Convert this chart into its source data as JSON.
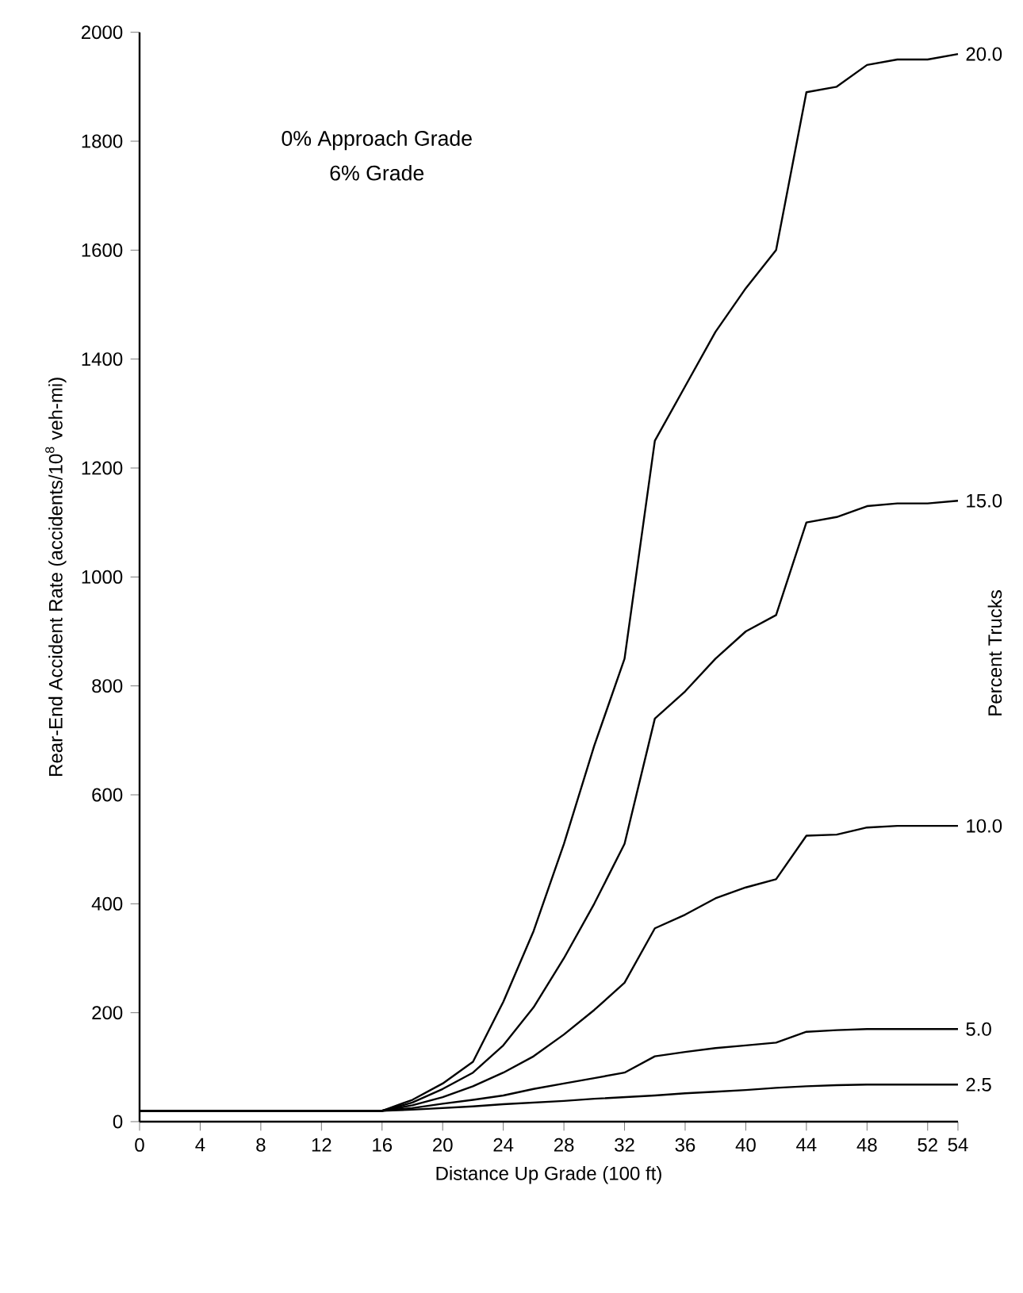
{
  "chart_data": {
    "type": "line",
    "xlabel": "Distance Up Grade (100 ft)",
    "ylabel": "Rear-End Accident Rate (accidents/10$^{8}$ veh-mi)",
    "annotations": [
      "0% Approach Grade",
      "6% Grade",
      "Percent Trucks"
    ],
    "x": [
      0,
      16,
      18,
      20,
      22,
      24,
      26,
      28,
      30,
      32,
      34,
      36,
      38,
      40,
      42,
      44,
      46,
      48,
      50,
      52,
      54
    ],
    "series": [
      {
        "name": "20.0",
        "color": "#000000",
        "values": [
          20,
          20,
          40,
          70,
          110,
          220,
          350,
          510,
          690,
          850,
          1250,
          1350,
          1450,
          1530,
          1600,
          1890,
          1900,
          1940,
          1950,
          1950,
          1960
        ]
      },
      {
        "name": "15.0",
        "color": "#000000",
        "values": [
          20,
          20,
          35,
          60,
          90,
          140,
          210,
          300,
          400,
          510,
          740,
          790,
          850,
          900,
          930,
          1100,
          1110,
          1130,
          1135,
          1135,
          1140
        ]
      },
      {
        "name": "10.0",
        "color": "#000000",
        "values": [
          20,
          20,
          30,
          45,
          65,
          90,
          120,
          160,
          205,
          255,
          355,
          380,
          410,
          430,
          445,
          525,
          527,
          540,
          543,
          543,
          543
        ]
      },
      {
        "name": "5.0",
        "color": "#000000",
        "values": [
          20,
          20,
          25,
          33,
          40,
          48,
          60,
          70,
          80,
          90,
          120,
          128,
          135,
          140,
          145,
          165,
          168,
          170,
          170,
          170,
          170
        ]
      },
      {
        "name": "2.5",
        "color": "#000000",
        "values": [
          20,
          20,
          22,
          25,
          28,
          32,
          35,
          38,
          42,
          45,
          48,
          52,
          55,
          58,
          62,
          65,
          67,
          68,
          68,
          68,
          68
        ]
      }
    ],
    "xlim": [
      0,
      54
    ],
    "ylim": [
      0,
      2000
    ],
    "xticks": [
      0,
      4,
      8,
      12,
      16,
      20,
      24,
      28,
      32,
      36,
      40,
      44,
      48,
      52,
      54
    ],
    "yticks": [
      0,
      200,
      400,
      600,
      800,
      1000,
      1200,
      1400,
      1600,
      1800,
      2000
    ],
    "grid": false,
    "legend": false,
    "marker": "none",
    "line_style": "solid"
  }
}
